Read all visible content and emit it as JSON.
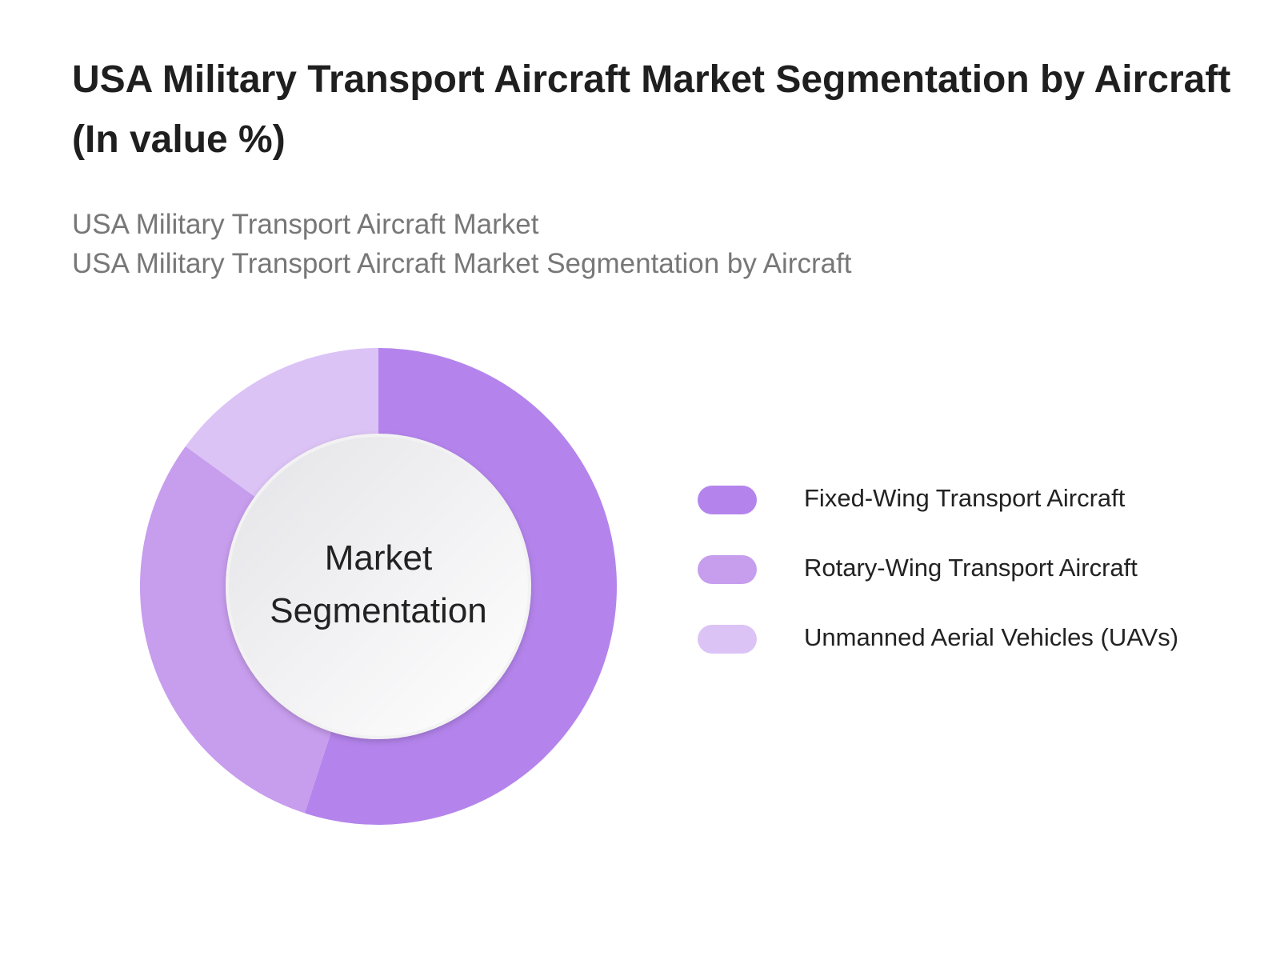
{
  "chart_data": {
    "type": "donut",
    "title": "USA Military Transport Aircraft Market Segmentation by Aircraft (In value %)",
    "subtitle": [
      "USA Military Transport Aircraft Market",
      "USA Military Transport Aircraft Market Segmentation by Aircraft"
    ],
    "center_label": "Market Segmentation",
    "categories": [
      "Fixed-Wing Transport Aircraft",
      "Rotary-Wing Transport Aircraft",
      "Unmanned Aerial Vehicles (UAVs)"
    ],
    "values": [
      55,
      30,
      15
    ],
    "colors": [
      "#b484ec",
      "#c79ded",
      "#dcc3f6"
    ]
  }
}
